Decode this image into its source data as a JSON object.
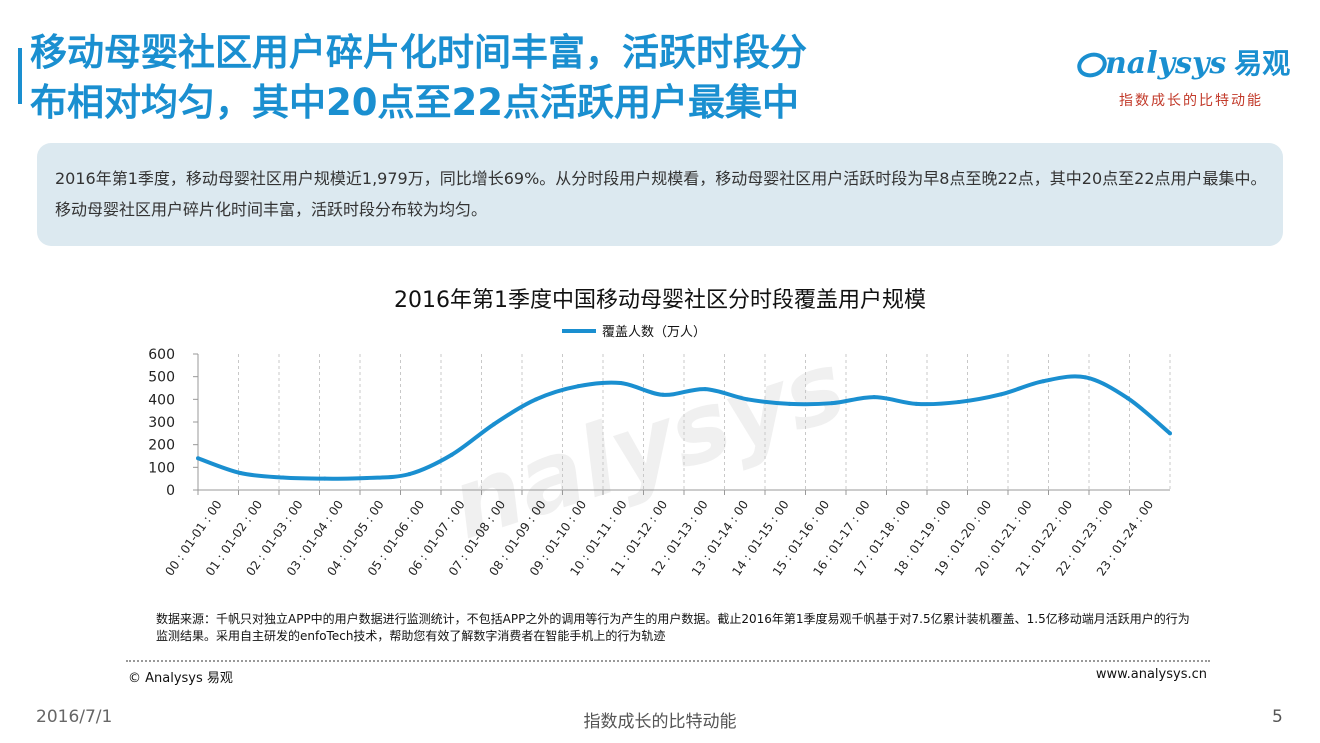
{
  "slide": {
    "title_lines": [
      "移动母婴社区用户碎片化时间丰富，活跃时段分",
      "布相对均匀，其中20点至22点活跃用户最集中"
    ],
    "logo_text": "nalysys",
    "logo_cn": "易观",
    "logo_slogan": "指数成长的比特动能",
    "summary": "2016年第1季度，移动母婴社区用户规模近1,979万，同比增长69%。从分时段用户规模看，移动母婴社区用户活跃时段为早8点至晚22点，其中20点至22点用户最集中。移动母婴社区用户碎片化时间丰富，活跃时段分布较为均匀。",
    "source_note": "数据来源：千帆只对独立APP中的用户数据进行监测统计，不包括APP之外的调用等行为产生的用户数据。截止2016年第1季度易观千帆基于对7.5亿累计装机覆盖、1.5亿移动端月活跃用户的行为监测结果。采用自主研发的enfoTech技术，帮助您有效了解数字消费者在智能手机上的行为轨迹",
    "copyright": "© Analysys 易观",
    "website": "www.analysys.cn",
    "footer_date": "2016/7/1",
    "footer_slogan": "指数成长的比特动能",
    "page_number": "5",
    "watermark": "nalysys",
    "colors": {
      "accent": "#1a8fd0",
      "summary_bg": "#dce9f0",
      "slogan_red": "#c23a2a"
    }
  },
  "chart_data": {
    "type": "line",
    "title": "2016年第1季度中国移动母婴社区分时段覆盖用户规模",
    "categories": [
      "00 : 01-01 : 00",
      "01 : 01-02 : 00",
      "02 : 01-03 : 00",
      "03 : 01-04 : 00",
      "04 : 01-05 : 00",
      "05 : 01-06 : 00",
      "06 : 01-07 : 00",
      "07 : 01-08 : 00",
      "08 : 01-09 : 00",
      "09 : 01-10 : 00",
      "10 : 01-11 : 00",
      "11 : 01-12 : 00",
      "12 : 01-13 : 00",
      "13 : 01-14 : 00",
      "14 : 01-15 : 00",
      "15 : 01-16 : 00",
      "16 : 01-17 : 00",
      "17 : 01-18 : 00",
      "18 : 01-19 : 00",
      "19 : 01-20 : 00",
      "20 : 01-21 : 00",
      "21 : 01-22 : 00",
      "22 : 01-23 : 00",
      "23 : 01-24 : 00"
    ],
    "series": [
      {
        "name": "覆盖人数（万人）",
        "values": [
          140,
          75,
          55,
          50,
          53,
          70,
          155,
          290,
          400,
          458,
          472,
          420,
          445,
          400,
          380,
          383,
          410,
          380,
          388,
          422,
          480,
          497,
          405,
          250
        ]
      }
    ],
    "ylim": [
      0,
      600
    ],
    "yticks": [
      0,
      100,
      200,
      300,
      400,
      500,
      600
    ],
    "grid": "vertical-dashed",
    "legend_position": "top-center",
    "color": "#1a8fd0"
  }
}
